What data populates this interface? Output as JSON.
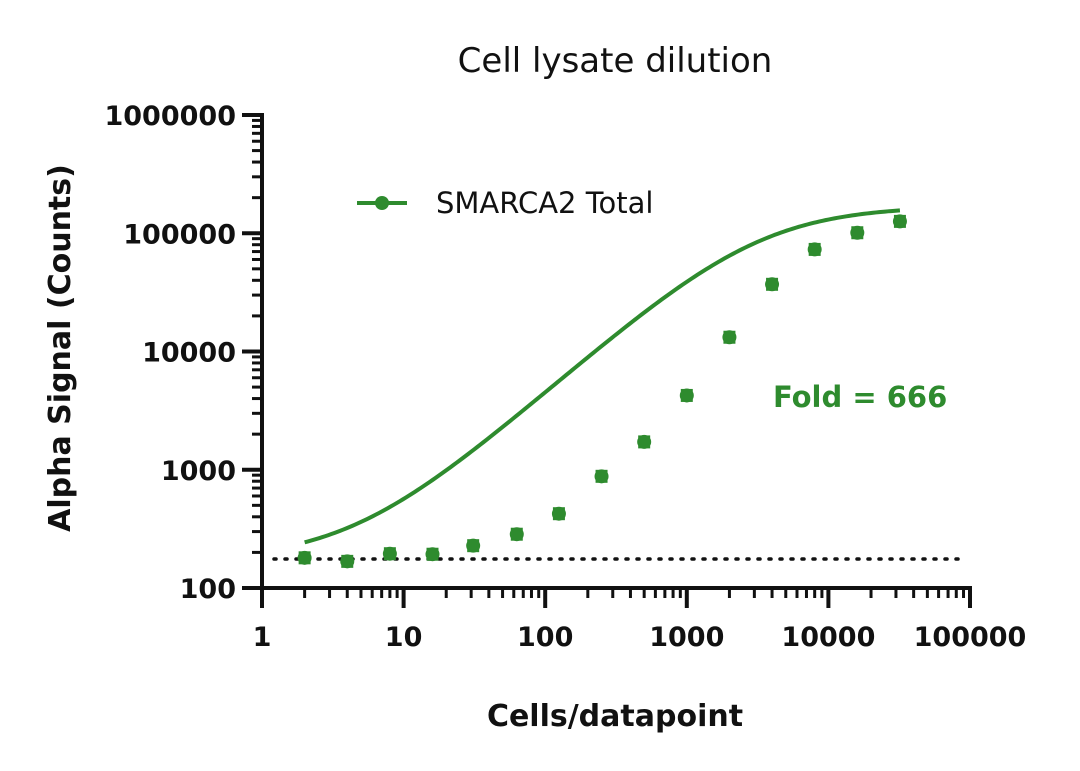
{
  "chart_data": {
    "type": "scatter",
    "title": "Cell lysate dilution",
    "xlabel": "Cells/datapoint",
    "ylabel": "Alpha Signal (Counts)",
    "xscale": "log",
    "yscale": "log",
    "xlim": [
      1,
      100000
    ],
    "ylim": [
      100,
      1000000
    ],
    "x_ticks": [
      1,
      10,
      100,
      1000,
      10000,
      100000
    ],
    "x_tick_labels": [
      "1",
      "10",
      "100",
      "1000",
      "10000",
      "100000"
    ],
    "y_ticks": [
      100,
      1000,
      10000,
      100000,
      1000000
    ],
    "y_tick_labels": [
      "100",
      "1000",
      "10000",
      "100000",
      "1000000"
    ],
    "grid": false,
    "legend_position": "top-left",
    "series": [
      {
        "name": "SMARCA2 Total",
        "color": "#2e8b2e",
        "marker": "circle",
        "x": [
          2,
          4,
          8,
          16,
          31,
          63,
          125,
          250,
          500,
          1000,
          2000,
          4000,
          8000,
          16000,
          32000
        ],
        "y": [
          180,
          168,
          195,
          193,
          228,
          285,
          425,
          880,
          1720,
          4250,
          13200,
          37000,
          73000,
          101000,
          126000
        ],
        "fit": {
          "type": "4PL",
          "bottom": 170,
          "top": 170000,
          "ec50": 3200,
          "hill": 1.05
        }
      }
    ],
    "reference_line": {
      "y": 176,
      "style": "dotted",
      "color": "#111111"
    },
    "annotations": [
      {
        "text": "Fold = 666",
        "color": "#2e8b2e"
      }
    ]
  }
}
